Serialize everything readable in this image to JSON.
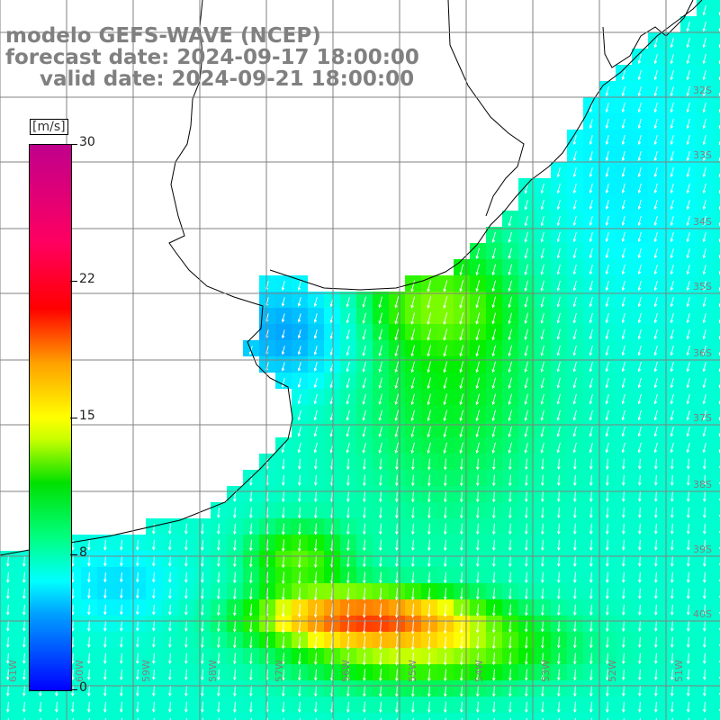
{
  "title": {
    "line1": "modelo GEFS-WAVE (NCEP)",
    "line2": "forecast date: 2024-09-17 18:00:00",
    "line3": "valid date: 2024-09-21 18:00:00"
  },
  "colorbar": {
    "unit": "[m/s]",
    "ticks": [
      {
        "value": 30,
        "label": "30"
      },
      {
        "value": 22,
        "label": "22"
      },
      {
        "value": 15,
        "label": "15"
      },
      {
        "value": 8,
        "label": "8"
      },
      {
        "value": 0,
        "label": "0"
      }
    ]
  },
  "map": {
    "lat_labels": [
      "32S",
      "33S",
      "34S",
      "35S",
      "36S",
      "37S",
      "38S",
      "39S",
      "40S"
    ],
    "lon_labels": [
      "61W",
      "60W",
      "59W",
      "58W",
      "57W",
      "56W",
      "55W",
      "54W",
      "53W",
      "52W",
      "51W"
    ],
    "colors": {
      "land": "#ffffff",
      "coast": "#000000",
      "grid": "#808080",
      "arrow": "#ffffff"
    }
  }
}
